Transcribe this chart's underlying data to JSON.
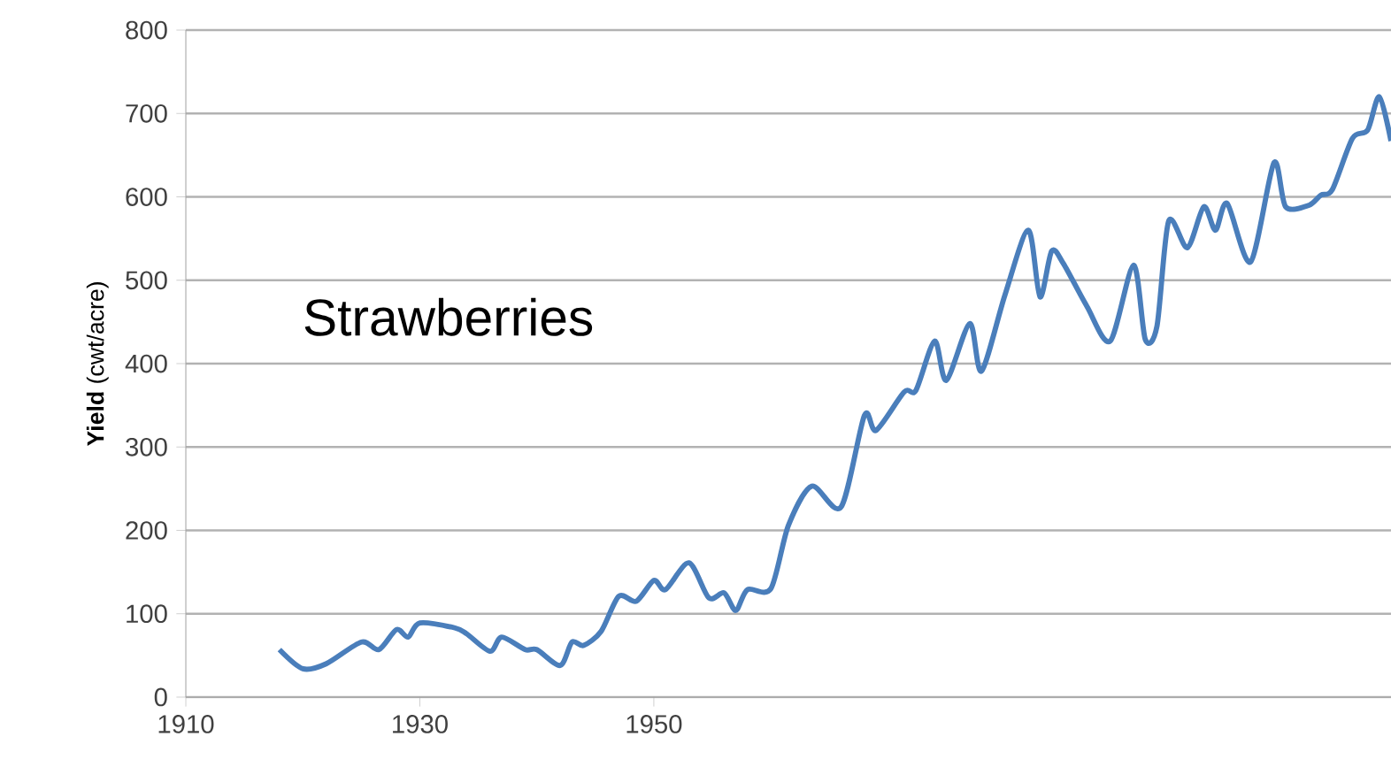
{
  "chart_data": {
    "type": "line",
    "ylabel": "**Yield** (cwt/acre)",
    "annotations": [
      "Strawberries"
    ],
    "xlim": [
      1910,
      2013
    ],
    "xticks": [
      1910,
      1930,
      1950
    ],
    "ylim": [
      0,
      800
    ],
    "yticks": [
      0,
      100,
      200,
      300,
      400,
      500,
      600,
      700,
      800
    ],
    "grid": "y",
    "series": [
      {
        "color": "#4a7ebb",
        "x": [
          1918,
          1920,
          1922,
          1925,
          1926.5,
          1928,
          1929,
          1930,
          1933,
          1934,
          1936,
          1937,
          1939,
          1940,
          1942,
          1943,
          1944,
          1945.5,
          1947,
          1948.5,
          1950,
          1951,
          1953,
          1954.7,
          1956,
          1957,
          1958,
          1960,
          1961.5,
          1963.5,
          1966,
          1968,
          1969,
          1971.4,
          1972.4,
          1974,
          1975,
          1977,
          1978,
          1980,
          1982,
          1983,
          1984,
          1985,
          1987,
          1989,
          1991,
          1992,
          1993,
          1994,
          1995.6,
          1997,
          1998,
          1999,
          2001,
          2003,
          2004,
          2006,
          2007,
          2008,
          2009.7,
          2011,
          2012,
          2013
        ],
        "values": [
          57,
          34,
          40,
          66,
          57,
          81,
          72,
          89,
          83,
          76,
          55,
          72,
          57,
          57,
          38,
          66,
          62,
          79,
          121,
          115,
          140,
          129,
          161,
          119,
          125,
          104,
          129,
          130,
          206,
          253,
          228,
          338,
          320,
          366,
          368,
          427,
          380,
          448,
          391,
          482,
          560,
          480,
          535,
          520,
          469,
          427,
          518,
          429,
          445,
          571,
          539,
          588,
          560,
          592,
          522,
          641,
          588,
          590,
          602,
          609,
          670,
          680,
          720,
          667
        ]
      }
    ]
  }
}
